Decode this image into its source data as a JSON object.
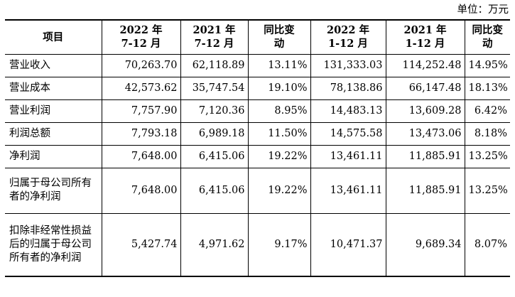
{
  "unit_label": "单位：万元",
  "table": {
    "headers": [
      {
        "line1": "项目",
        "line2": ""
      },
      {
        "line1": "2022 年",
        "line2": "7-12 月"
      },
      {
        "line1": "2021 年",
        "line2": "7-12 月"
      },
      {
        "line1": "同比变",
        "line2": "动"
      },
      {
        "line1": "2022 年",
        "line2": "1-12 月"
      },
      {
        "line1": "2021 年",
        "line2": "1-12 月"
      },
      {
        "line1": "同比变",
        "line2": "动"
      }
    ],
    "rows": [
      {
        "item": "营业收入",
        "values": [
          "70,263.70",
          "62,118.89",
          "13.11%",
          "131,333.03",
          "114,252.48",
          "14.95%"
        ]
      },
      {
        "item": "营业成本",
        "values": [
          "42,573.62",
          "35,747.54",
          "19.10%",
          "78,138.86",
          "66,147.48",
          "18.13%"
        ]
      },
      {
        "item": "营业利润",
        "values": [
          "7,757.90",
          "7,120.36",
          "8.95%",
          "14,483.13",
          "13,609.28",
          "6.42%"
        ]
      },
      {
        "item": "利润总额",
        "values": [
          "7,793.18",
          "6,989.18",
          "11.50%",
          "14,575.58",
          "13,473.06",
          "8.18%"
        ]
      },
      {
        "item": "净利润",
        "values": [
          "7,648.00",
          "6,415.06",
          "19.22%",
          "13,461.11",
          "11,885.91",
          "13.25%"
        ]
      },
      {
        "item": "归属于母公司所有者的净利润",
        "values": [
          "7,648.00",
          "6,415.06",
          "19.22%",
          "13,461.11",
          "11,885.91",
          "13.25%"
        ]
      },
      {
        "item": "扣除非经常性损益后的归属于母公司所有者的净利润",
        "values": [
          "5,427.74",
          "4,971.62",
          "9.17%",
          "10,471.37",
          "9,689.34",
          "8.07%"
        ]
      }
    ]
  }
}
